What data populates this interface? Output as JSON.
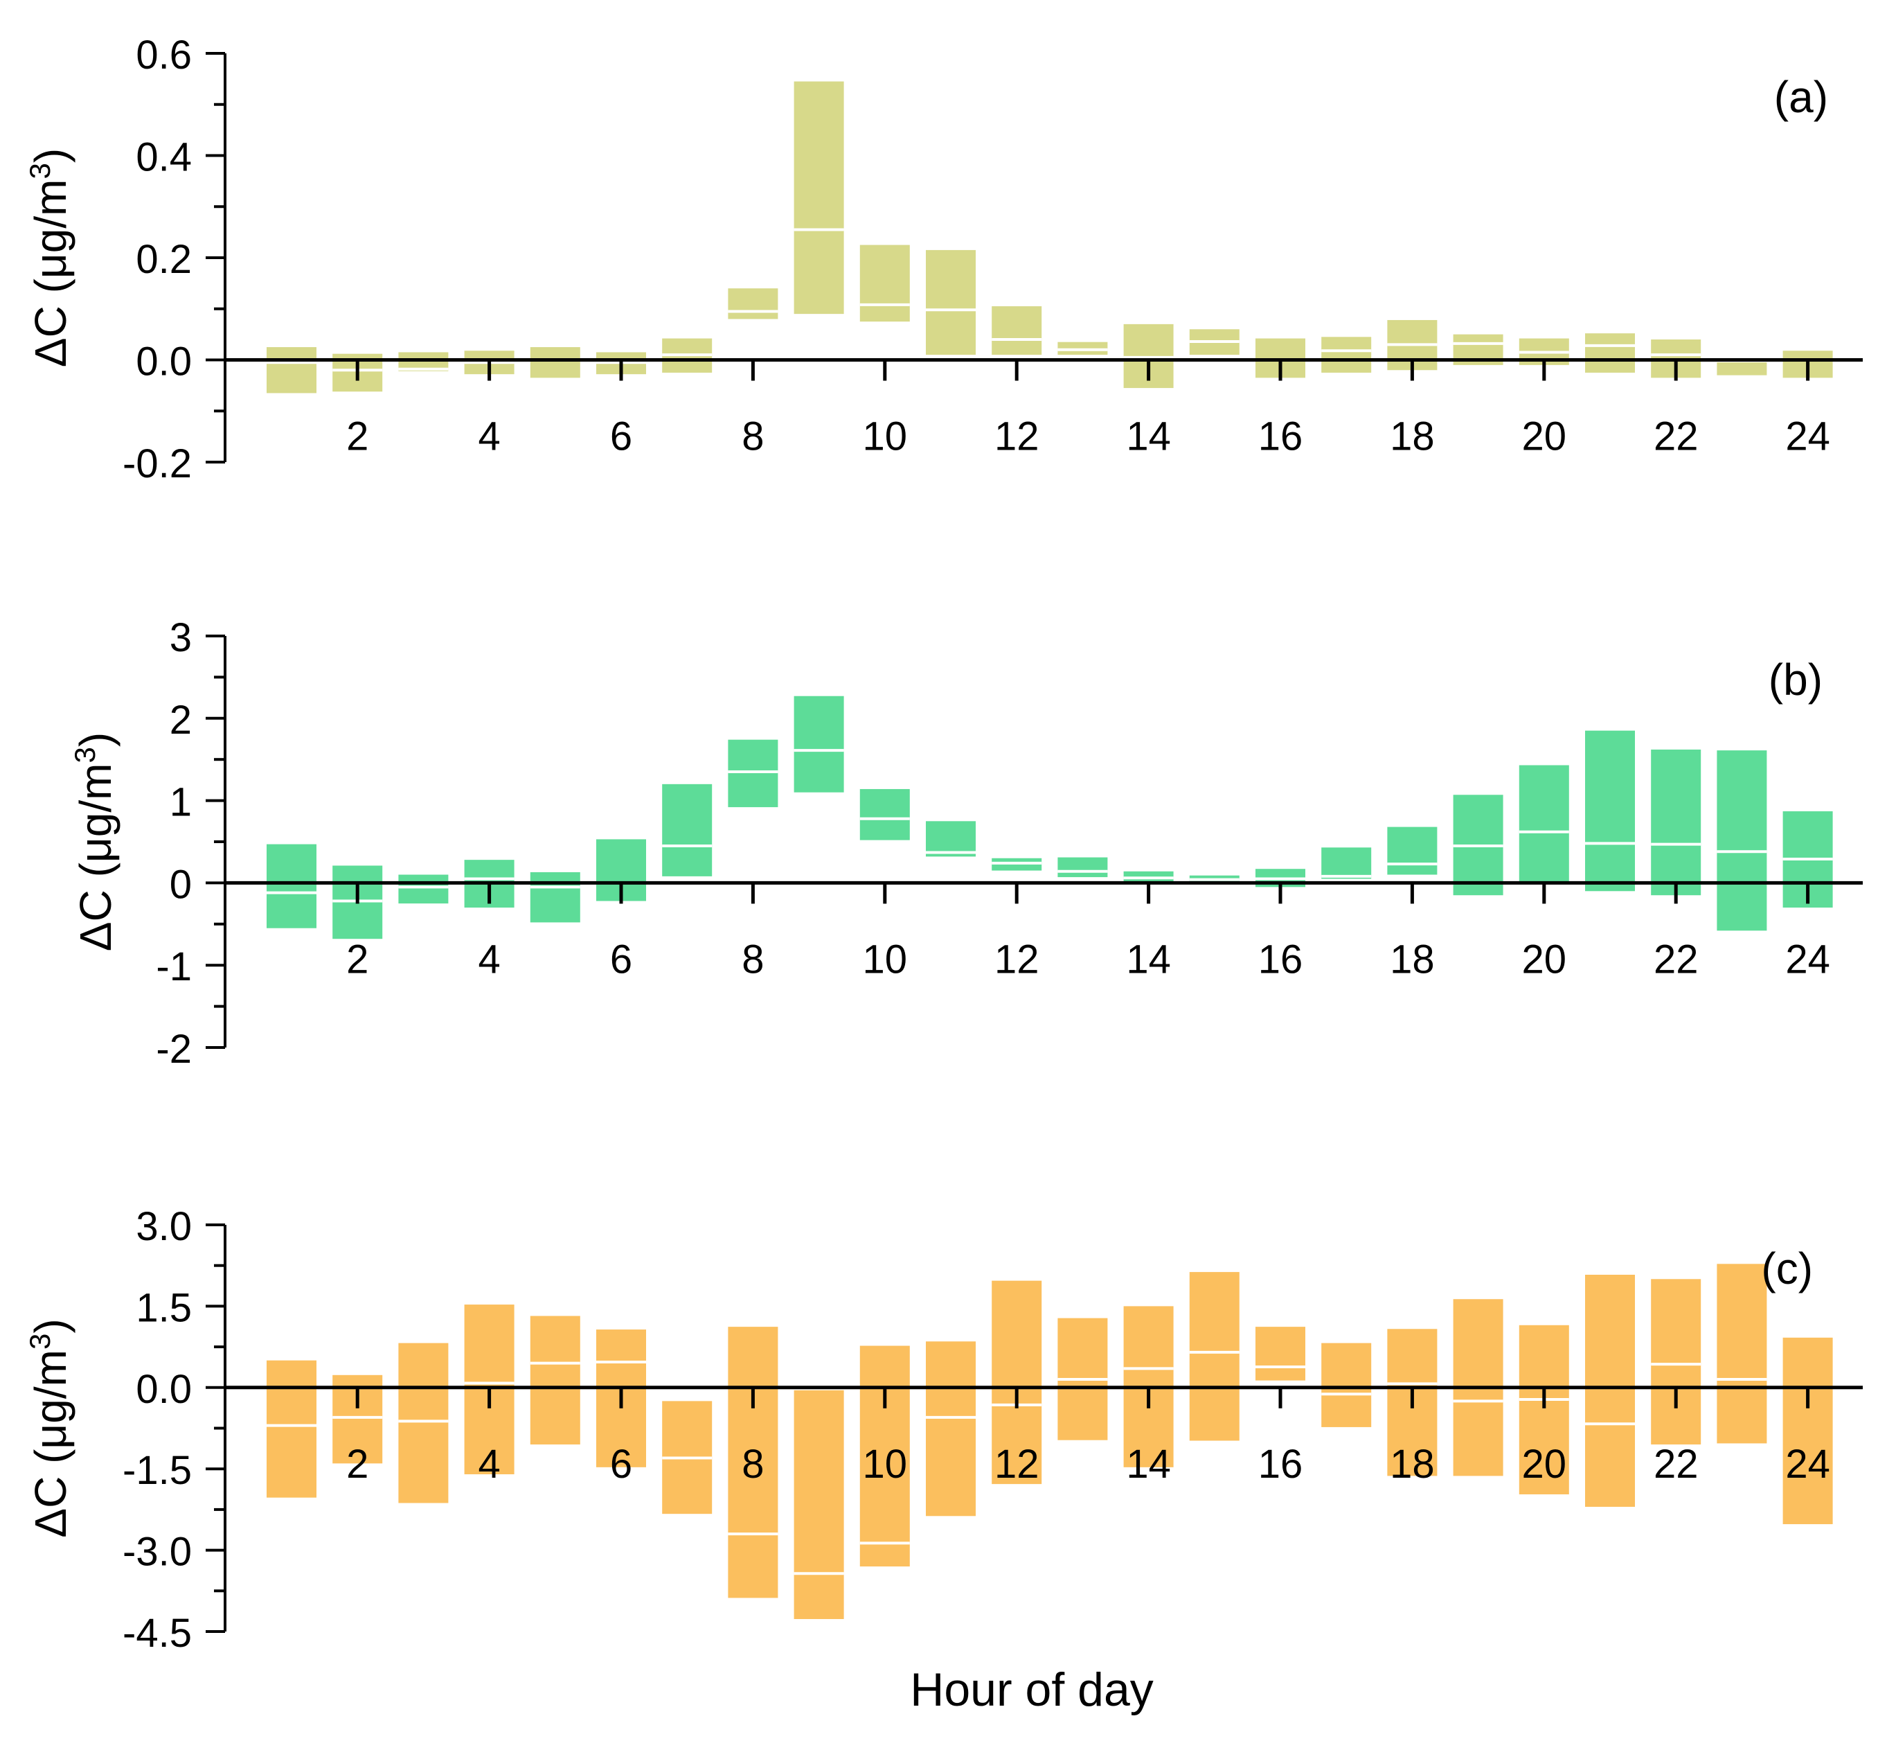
{
  "figure": {
    "xlabel": "Hour of day",
    "x_ticks": [
      "2",
      "4",
      "6",
      "8",
      "10",
      "12",
      "14",
      "16",
      "18",
      "20",
      "22",
      "24"
    ]
  },
  "chart_data": [
    {
      "type": "bar",
      "panel_label": "(a)",
      "ylabel_main": "ΔC (μg/m",
      "ylabel_sup": "3",
      "ylabel_close": ")",
      "color": "#d7d98a",
      "ylim": [
        -0.2,
        0.6
      ],
      "y_ticks": [
        "-0.2",
        "0.0",
        "0.2",
        "0.4",
        "0.6"
      ],
      "y_tick_values": [
        -0.2,
        0.0,
        0.2,
        0.4,
        0.6
      ],
      "x": [
        1,
        2,
        3,
        4,
        5,
        6,
        7,
        8,
        9,
        10,
        11,
        12,
        13,
        14,
        15,
        16,
        17,
        18,
        19,
        20,
        21,
        22,
        23,
        24
      ],
      "low": [
        -0.065,
        -0.062,
        -0.022,
        -0.028,
        -0.035,
        -0.028,
        -0.025,
        0.08,
        0.09,
        0.075,
        0.01,
        0.01,
        0.01,
        -0.055,
        0.01,
        -0.035,
        -0.025,
        -0.02,
        -0.01,
        -0.01,
        -0.025,
        -0.035,
        -0.03,
        -0.035
      ],
      "high": [
        0.025,
        0.012,
        0.015,
        0.018,
        0.025,
        0.015,
        0.042,
        0.14,
        0.545,
        0.225,
        0.215,
        0.105,
        0.035,
        0.07,
        0.06,
        0.042,
        0.045,
        0.078,
        0.05,
        0.042,
        0.052,
        0.04,
        0.002,
        0.018
      ],
      "median": [
        -0.005,
        -0.02,
        -0.018,
        -0.005,
        0.0,
        -0.005,
        0.01,
        0.095,
        0.255,
        0.108,
        0.098,
        0.04,
        0.02,
        0.005,
        0.036,
        0.0,
        0.018,
        0.03,
        0.032,
        0.015,
        0.028,
        0.01,
        -0.002,
        0.0
      ]
    },
    {
      "type": "bar",
      "panel_label": "(b)",
      "ylabel_main": "ΔC (μg/m",
      "ylabel_sup": "3",
      "ylabel_close": ")",
      "color": "#5ddc98",
      "ylim": [
        -2,
        3
      ],
      "y_ticks": [
        "-2",
        "-1",
        "0",
        "1",
        "2",
        "3"
      ],
      "y_tick_values": [
        -2,
        -1,
        0,
        1,
        2,
        3
      ],
      "x": [
        1,
        2,
        3,
        4,
        5,
        6,
        7,
        8,
        9,
        10,
        11,
        12,
        13,
        14,
        15,
        16,
        17,
        18,
        19,
        20,
        21,
        22,
        23,
        24
      ],
      "low": [
        -0.55,
        -0.68,
        -0.25,
        -0.3,
        -0.48,
        -0.22,
        0.08,
        0.92,
        1.1,
        0.52,
        0.32,
        0.15,
        0.07,
        0.02,
        0.01,
        -0.05,
        0.05,
        0.1,
        -0.15,
        0.0,
        -0.1,
        -0.15,
        -0.58,
        -0.3
      ],
      "high": [
        0.47,
        0.21,
        0.1,
        0.28,
        0.13,
        0.53,
        1.2,
        1.74,
        2.27,
        1.14,
        0.75,
        0.3,
        0.31,
        0.14,
        0.09,
        0.17,
        0.43,
        0.68,
        1.07,
        1.43,
        1.85,
        1.62,
        1.61,
        0.87
      ],
      "median": [
        -0.12,
        -0.22,
        -0.05,
        0.05,
        -0.05,
        0.0,
        0.45,
        1.35,
        1.61,
        0.78,
        0.37,
        0.24,
        0.14,
        0.06,
        0.04,
        0.05,
        0.08,
        0.23,
        0.45,
        0.62,
        0.48,
        0.47,
        0.38,
        0.29
      ]
    },
    {
      "type": "bar",
      "panel_label": "(c)",
      "ylabel_main": "ΔC (μg/m",
      "ylabel_sup": "3",
      "ylabel_close": ")",
      "color": "#fbbf5e",
      "ylim": [
        -4.5,
        3.0
      ],
      "y_ticks": [
        "-4.5",
        "-3.0",
        "-1.5",
        "0.0",
        "1.5",
        "3.0"
      ],
      "y_tick_values": [
        -4.5,
        -3.0,
        -1.5,
        0.0,
        1.5,
        3.0
      ],
      "x": [
        1,
        2,
        3,
        4,
        5,
        6,
        7,
        8,
        9,
        10,
        11,
        12,
        13,
        14,
        15,
        16,
        17,
        18,
        19,
        20,
        21,
        22,
        23,
        24
      ],
      "low": [
        -2.03,
        -1.4,
        -2.13,
        -1.6,
        -1.05,
        -1.47,
        -2.33,
        -3.88,
        -4.27,
        -3.3,
        -2.37,
        -1.78,
        -0.97,
        -1.47,
        -0.98,
        0.13,
        -0.73,
        -1.63,
        -1.63,
        -1.97,
        -2.2,
        -1.05,
        -1.03,
        -2.52
      ],
      "high": [
        0.5,
        0.23,
        0.82,
        1.53,
        1.32,
        1.07,
        -0.25,
        1.12,
        -0.05,
        0.77,
        0.85,
        1.97,
        1.28,
        1.5,
        2.13,
        1.12,
        0.82,
        1.08,
        1.63,
        1.15,
        2.08,
        2.0,
        2.28,
        0.92
      ],
      "median": [
        -0.7,
        -0.55,
        -0.62,
        0.08,
        0.45,
        0.47,
        -1.3,
        -2.7,
        -3.43,
        -2.87,
        -0.55,
        -0.32,
        0.15,
        0.35,
        0.65,
        0.38,
        -0.12,
        0.07,
        -0.25,
        -0.22,
        -0.67,
        0.43,
        0.15,
        0.0
      ]
    }
  ]
}
